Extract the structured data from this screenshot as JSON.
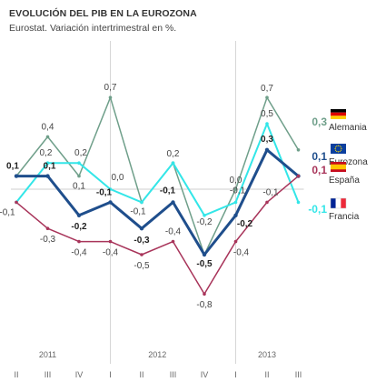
{
  "title": "EVOLUCIÓN DEL PIB EN LA EUROZONA",
  "subtitle": "Eurostat. Variación intertrimestral en %.",
  "chart_data": {
    "type": "line",
    "title": "EVOLUCIÓN DEL PIB EN LA EUROZONA",
    "subtitle": "Eurostat. Variación intertrimestral en %.",
    "categories": [
      "II",
      "III",
      "IV",
      "I",
      "II",
      "III",
      "IV",
      "I",
      "II",
      "III"
    ],
    "years": [
      {
        "label": "2011",
        "index": 1
      },
      {
        "label": "2012",
        "index": 4.5
      },
      {
        "label": "2013",
        "index": 8
      }
    ],
    "ylim": [
      -0.9,
      0.8
    ],
    "zero_line": true,
    "legend_position": "right",
    "series": [
      {
        "name": "Alemania",
        "color": "#6f9f8a",
        "line_width": 1.5,
        "values": [
          0.1,
          0.4,
          0.1,
          0.7,
          -0.1,
          0.2,
          -0.5,
          0.0,
          0.7,
          0.3
        ],
        "labels": [
          "",
          "0,4",
          "0,1",
          "0,7",
          "",
          "0,2",
          "",
          "0,0",
          "0,7",
          ""
        ],
        "legend_value": "0,3",
        "flag": "de"
      },
      {
        "name": "Francia",
        "color": "#33e6e8",
        "line_width": 2,
        "values": [
          -0.1,
          0.2,
          0.2,
          0.0,
          -0.1,
          0.2,
          -0.2,
          -0.1,
          0.5,
          -0.1
        ],
        "labels": [
          "-0,1",
          "0,2",
          "0,2",
          "0,0",
          "-0,1",
          "",
          "-0,2",
          "-0,1",
          "0,5",
          ""
        ],
        "legend_value": "-0,1",
        "flag": "fr"
      },
      {
        "name": "Eurozona",
        "color": "#1f4e8c",
        "line_width": 3,
        "values": [
          0.1,
          0.1,
          -0.2,
          -0.1,
          -0.3,
          -0.1,
          -0.5,
          -0.2,
          0.3,
          0.1
        ],
        "labels": [
          "0,1",
          "0,1",
          "-0,2",
          "-0,1",
          "-0,3",
          "-0,1",
          "-0,5",
          "-0,2",
          "0,3",
          ""
        ],
        "legend_value": "0,1",
        "flag": "eu"
      },
      {
        "name": "España",
        "color": "#a8345a",
        "line_width": 1.5,
        "values": [
          -0.1,
          -0.3,
          -0.4,
          -0.4,
          -0.5,
          -0.4,
          -0.8,
          -0.4,
          -0.1,
          0.1
        ],
        "labels": [
          "",
          "-0,3",
          "-0,4",
          "-0,4",
          "-0,5",
          "-0,4",
          "-0,8",
          "-0,4",
          "-0,1",
          ""
        ],
        "legend_value": "0,1",
        "flag": "es"
      }
    ]
  }
}
